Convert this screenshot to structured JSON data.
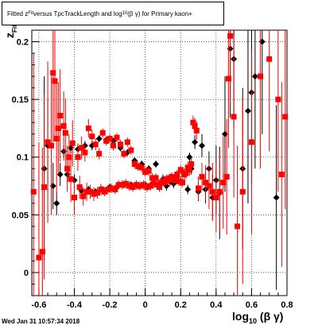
{
  "title": {
    "prefix": "Fitted  z",
    "sub1": "Fit",
    "middle": " versus TpcTrackLength and log",
    "sub2": "10",
    "suffix": "(β γ) for Primary kaon+"
  },
  "footer_text": "Wed Jan 31 10:57:34 2018",
  "axis_labels": {
    "x_main": "log",
    "x_sub": "10",
    "x_tail": "(β γ)",
    "y_main": "z",
    "y_sub": "Fit"
  },
  "chart_data": {
    "type": "scatter",
    "xlim": [
      -0.64,
      0.8
    ],
    "ylim": [
      -0.02,
      0.21
    ],
    "grid": true,
    "x_ticks": [
      "-0.6",
      "-0.4",
      "-0.2",
      "0",
      "0.2",
      "0.4",
      "0.6",
      "0.8"
    ],
    "x_tick_values": [
      -0.6,
      -0.4,
      -0.2,
      0,
      0.2,
      0.4,
      0.6,
      0.8
    ],
    "y_ticks": [
      "0",
      "0.05",
      "0.1",
      "0.15",
      "0.2"
    ],
    "y_tick_values": [
      0,
      0.05,
      0.1,
      0.15,
      0.2
    ],
    "series": [
      {
        "color": "#000000",
        "marker": "diamond",
        "points": [
          [
            -0.57,
            0.09,
            0.08
          ],
          [
            -0.55,
            0.11,
            0.04
          ],
          [
            -0.52,
            0.075,
            0.02
          ],
          [
            -0.5,
            0.06,
            0.01
          ],
          [
            -0.48,
            0.085,
            0.01
          ],
          [
            -0.46,
            0.105,
            0.005
          ],
          [
            -0.44,
            0.085,
            0.006
          ],
          [
            -0.42,
            0.108,
            0.005
          ],
          [
            -0.4,
            0.08,
            0.005
          ],
          [
            -0.38,
            0.107,
            0.004
          ],
          [
            -0.36,
            0.071,
            0.004
          ],
          [
            -0.34,
            0.11,
            0.004
          ],
          [
            -0.32,
            0.072,
            0.003
          ],
          [
            -0.3,
            0.11,
            0.004
          ],
          [
            -0.28,
            0.07,
            0.003
          ],
          [
            -0.26,
            0.116,
            0.003
          ],
          [
            -0.24,
            0.072,
            0.003
          ],
          [
            -0.22,
            0.115,
            0.003
          ],
          [
            -0.2,
            0.074,
            0.003
          ],
          [
            -0.18,
            0.114,
            0.003
          ],
          [
            -0.16,
            0.074,
            0.003
          ],
          [
            -0.14,
            0.108,
            0.003
          ],
          [
            -0.12,
            0.076,
            0.003
          ],
          [
            -0.1,
            0.104,
            0.003
          ],
          [
            -0.08,
            0.076,
            0.003
          ],
          [
            -0.06,
            0.097,
            0.003
          ],
          [
            -0.04,
            0.075,
            0.003
          ],
          [
            -0.02,
            0.094,
            0.003
          ],
          [
            0.0,
            0.076,
            0.003
          ],
          [
            0.02,
            0.09,
            0.003
          ],
          [
            0.04,
            0.077,
            0.003
          ],
          [
            0.06,
            0.094,
            0.003
          ],
          [
            0.08,
            0.076,
            0.003
          ],
          [
            0.1,
            0.081,
            0.004
          ],
          [
            0.12,
            0.075,
            0.004
          ],
          [
            0.14,
            0.079,
            0.004
          ],
          [
            0.16,
            0.077,
            0.004
          ],
          [
            0.18,
            0.083,
            0.004
          ],
          [
            0.2,
            0.079,
            0.004
          ],
          [
            0.22,
            0.086,
            0.004
          ],
          [
            0.24,
            0.072,
            0.004
          ],
          [
            0.25,
            0.1,
            0.004
          ],
          [
            0.26,
            0.09,
            0.005
          ],
          [
            0.28,
            0.113,
            0.006
          ],
          [
            0.3,
            0.07,
            0.008
          ],
          [
            0.32,
            0.11,
            0.01
          ],
          [
            0.34,
            0.072,
            0.012
          ],
          [
            0.36,
            0.09,
            0.015
          ],
          [
            0.38,
            0.065,
            0.02
          ],
          [
            0.4,
            0.08,
            0.03
          ],
          [
            0.42,
            0.069,
            0.04
          ],
          [
            0.45,
            0.12,
            0.05
          ],
          [
            0.48,
            0.194,
            0.06
          ],
          [
            0.5,
            0.185,
            0.06
          ],
          [
            0.55,
            0.09,
            0.07
          ],
          [
            0.58,
            0.14,
            0.08
          ],
          [
            0.6,
            0.156,
            0.08
          ],
          [
            0.62,
            0.17,
            0.08
          ],
          [
            0.66,
            0.2,
            0.08
          ],
          [
            0.74,
            0.065,
            0.08
          ]
        ]
      },
      {
        "color": "#ff0000",
        "marker": "square",
        "points": [
          [
            -0.63,
            0.07,
            0.12
          ],
          [
            -0.6,
            0.013,
            0.1
          ],
          [
            -0.58,
            0.018,
            0.09
          ],
          [
            -0.57,
            0.074,
            0.08
          ],
          [
            -0.55,
            0.113,
            0.07
          ],
          [
            -0.53,
            0.11,
            0.06
          ],
          [
            -0.52,
            0.173,
            0.06
          ],
          [
            -0.51,
            0.166,
            0.05
          ],
          [
            -0.5,
            0.116,
            0.05
          ],
          [
            -0.49,
            0.125,
            0.04
          ],
          [
            -0.48,
            0.136,
            0.04
          ],
          [
            -0.46,
            0.127,
            0.03
          ],
          [
            -0.45,
            0.121,
            0.03
          ],
          [
            -0.44,
            0.09,
            0.02
          ],
          [
            -0.43,
            0.1,
            0.02
          ],
          [
            -0.42,
            0.081,
            0.02
          ],
          [
            -0.41,
            0.112,
            0.02
          ],
          [
            -0.4,
            0.065,
            0.015
          ],
          [
            -0.38,
            0.1,
            0.012
          ],
          [
            -0.37,
            0.074,
            0.01
          ],
          [
            -0.36,
            0.108,
            0.01
          ],
          [
            -0.35,
            0.066,
            0.008
          ],
          [
            -0.34,
            0.104,
            0.008
          ],
          [
            -0.33,
            0.07,
            0.008
          ],
          [
            -0.32,
            0.125,
            0.008
          ],
          [
            -0.31,
            0.07,
            0.006
          ],
          [
            -0.3,
            0.118,
            0.006
          ],
          [
            -0.29,
            0.068,
            0.006
          ],
          [
            -0.28,
            0.111,
            0.005
          ],
          [
            -0.27,
            0.069,
            0.005
          ],
          [
            -0.26,
            0.103,
            0.005
          ],
          [
            -0.25,
            0.072,
            0.005
          ],
          [
            -0.24,
            0.121,
            0.004
          ],
          [
            -0.23,
            0.07,
            0.004
          ],
          [
            -0.22,
            0.114,
            0.004
          ],
          [
            -0.21,
            0.072,
            0.004
          ],
          [
            -0.2,
            0.116,
            0.004
          ],
          [
            -0.19,
            0.073,
            0.004
          ],
          [
            -0.18,
            0.11,
            0.004
          ],
          [
            -0.17,
            0.072,
            0.004
          ],
          [
            -0.16,
            0.117,
            0.004
          ],
          [
            -0.15,
            0.076,
            0.004
          ],
          [
            -0.14,
            0.111,
            0.004
          ],
          [
            -0.13,
            0.076,
            0.004
          ],
          [
            -0.12,
            0.103,
            0.004
          ],
          [
            -0.11,
            0.077,
            0.004
          ],
          [
            -0.1,
            0.113,
            0.004
          ],
          [
            -0.09,
            0.075,
            0.004
          ],
          [
            -0.08,
            0.106,
            0.004
          ],
          [
            -0.07,
            0.074,
            0.004
          ],
          [
            -0.06,
            0.094,
            0.004
          ],
          [
            -0.05,
            0.076,
            0.004
          ],
          [
            -0.04,
            0.092,
            0.004
          ],
          [
            -0.03,
            0.075,
            0.004
          ],
          [
            -0.02,
            0.091,
            0.004
          ],
          [
            -0.01,
            0.076,
            0.004
          ],
          [
            0.0,
            0.087,
            0.004
          ],
          [
            0.01,
            0.074,
            0.004
          ],
          [
            0.02,
            0.088,
            0.004
          ],
          [
            0.03,
            0.075,
            0.004
          ],
          [
            0.04,
            0.082,
            0.004
          ],
          [
            0.05,
            0.077,
            0.004
          ],
          [
            0.06,
            0.082,
            0.004
          ],
          [
            0.07,
            0.076,
            0.004
          ],
          [
            0.08,
            0.074,
            0.004
          ],
          [
            0.09,
            0.078,
            0.004
          ],
          [
            0.1,
            0.079,
            0.004
          ],
          [
            0.11,
            0.078,
            0.004
          ],
          [
            0.12,
            0.081,
            0.004
          ],
          [
            0.13,
            0.08,
            0.004
          ],
          [
            0.14,
            0.082,
            0.004
          ],
          [
            0.15,
            0.083,
            0.004
          ],
          [
            0.16,
            0.08,
            0.004
          ],
          [
            0.17,
            0.082,
            0.004
          ],
          [
            0.18,
            0.085,
            0.004
          ],
          [
            0.19,
            0.079,
            0.004
          ],
          [
            0.2,
            0.089,
            0.004
          ],
          [
            0.21,
            0.078,
            0.004
          ],
          [
            0.22,
            0.085,
            0.005
          ],
          [
            0.23,
            0.086,
            0.005
          ],
          [
            0.24,
            0.091,
            0.005
          ],
          [
            0.25,
            0.089,
            0.005
          ],
          [
            0.26,
            0.094,
            0.006
          ],
          [
            0.27,
            0.13,
            0.006
          ],
          [
            0.28,
            0.127,
            0.007
          ],
          [
            0.29,
            0.123,
            0.008
          ],
          [
            0.3,
            0.073,
            0.01
          ],
          [
            0.32,
            0.083,
            0.012
          ],
          [
            0.34,
            0.078,
            0.015
          ],
          [
            0.36,
            0.075,
            0.02
          ],
          [
            0.38,
            0.07,
            0.025
          ],
          [
            0.4,
            0.065,
            0.03
          ],
          [
            0.42,
            0.07,
            0.035
          ],
          [
            0.44,
            0.078,
            0.04
          ],
          [
            0.46,
            0.083,
            0.05
          ],
          [
            0.47,
            0.168,
            0.06
          ],
          [
            0.48,
            0.205,
            0.06
          ],
          [
            0.5,
            0.135,
            0.07
          ],
          [
            0.52,
            0.04,
            0.07
          ],
          [
            0.55,
            0.07,
            0.08
          ],
          [
            0.6,
            0.113,
            0.08
          ],
          [
            0.65,
            0.17,
            0.08
          ],
          [
            0.7,
            0.185,
            0.08
          ],
          [
            0.75,
            0.15,
            0.08
          ],
          [
            0.79,
            0.135,
            0.08
          ],
          [
            0.77,
            0.085,
            0.08
          ]
        ]
      }
    ]
  }
}
